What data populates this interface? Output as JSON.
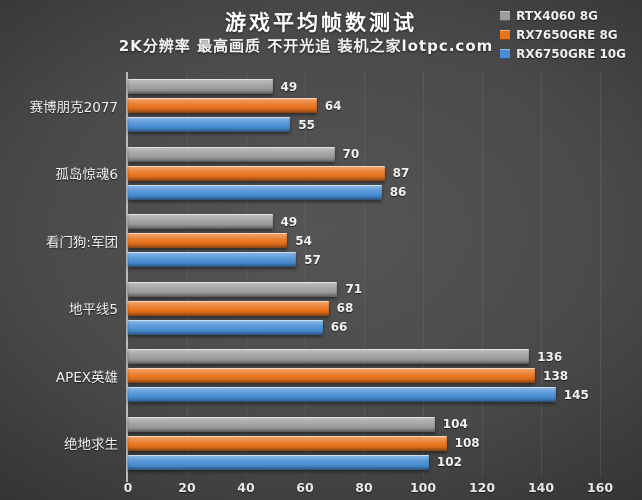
{
  "header": {
    "title": "游戏平均帧数测试",
    "subtitle": "2K分辨率 最高画质 不开光追  装机之家lotpc.com"
  },
  "legend": [
    {
      "label": "RTX4060 8G",
      "color": "#9d9d9b"
    },
    {
      "label": "RX7650GRE 8G",
      "color": "#e8731d"
    },
    {
      "label": "RX6750GRE 10G",
      "color": "#4a8fd4"
    }
  ],
  "chart_data": {
    "type": "bar",
    "orientation": "horizontal",
    "title": "游戏平均帧数测试",
    "subtitle": "2K分辨率 最高画质 不开光追  装机之家lotpc.com",
    "categories": [
      "赛博朋克2077",
      "孤岛惊魂6",
      "看门狗:军团",
      "地平线5",
      "APEX英雄",
      "绝地求生"
    ],
    "series": [
      {
        "name": "RTX4060 8G",
        "color": "#9d9d9b",
        "values": [
          49,
          70,
          49,
          71,
          136,
          104
        ]
      },
      {
        "name": "RX7650GRE 8G",
        "color": "#e8731d",
        "values": [
          64,
          87,
          54,
          68,
          138,
          108
        ]
      },
      {
        "name": "RX6750GRE 10G",
        "color": "#4a8fd4",
        "values": [
          55,
          86,
          57,
          66,
          145,
          102
        ]
      }
    ],
    "xlabel": "",
    "ylabel": "",
    "xlim": [
      0,
      160
    ],
    "xticks": [
      0,
      20,
      40,
      60,
      80,
      100,
      120,
      140,
      160
    ],
    "grid": true,
    "legend_position": "top-right",
    "value_labels": true,
    "background": "#4a4a4a",
    "text_color": "#f2f2f2"
  }
}
